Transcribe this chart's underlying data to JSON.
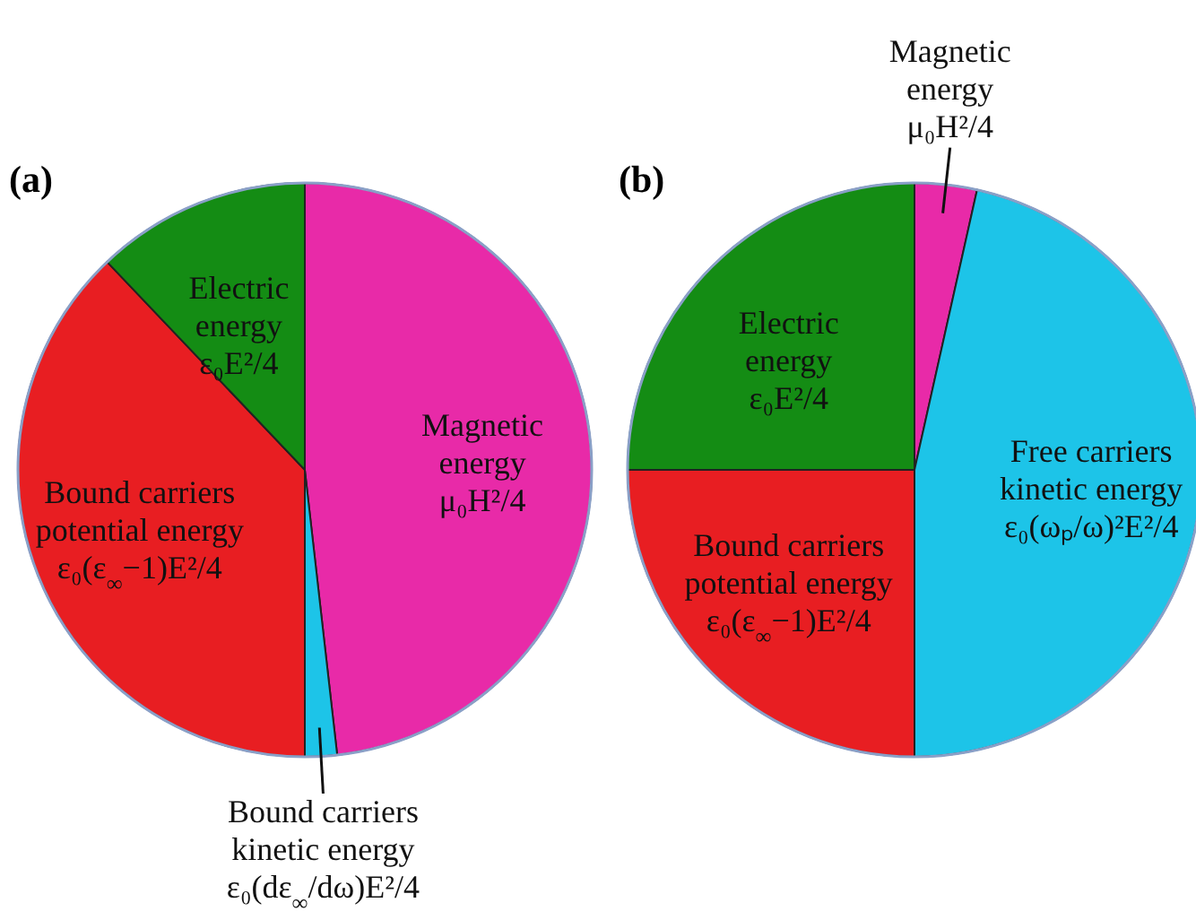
{
  "chart_data": [
    {
      "type": "pie",
      "title": "(a)",
      "categories": [
        "Magnetic\nenergy\nμ₀H²/4",
        "Bound carriers\nkinetic energy\nε₀(dε$_{∞}$/dω)E²/4",
        "Bound carriers\npotential energy\nε₀(ε$_{∞}$−1)E²/4",
        "Electric\nenergy\nε₀E²/4"
      ],
      "values": [
        48.2,
        1.8,
        37.9,
        12.1
      ],
      "colors": [
        "#e82aa8",
        "#1dc4e8",
        "#e81e22",
        "#148c14"
      ]
    },
    {
      "type": "pie",
      "title": "(b)",
      "categories": [
        "Magnetic\nenergy\nμ₀H²/4",
        "Free carriers\nkinetic energy\nε₀(ωₚ/ω)²E²/4",
        "Bound carriers\npotential energy\nε₀(ε$_{∞}$−1)E²/4",
        "Electric\nenergy\nε₀E²/4"
      ],
      "values": [
        3.5,
        46.5,
        25,
        25
      ],
      "colors": [
        "#e82aa8",
        "#1dc4e8",
        "#e81e22",
        "#148c14"
      ]
    }
  ]
}
